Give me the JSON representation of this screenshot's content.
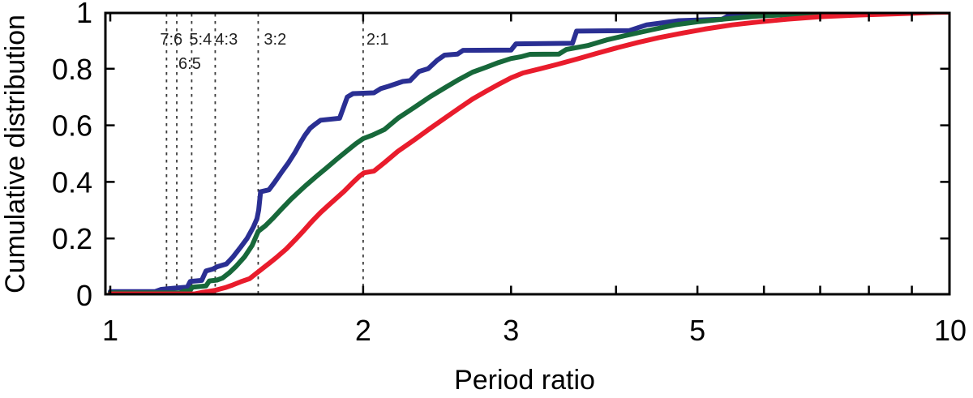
{
  "figure": {
    "background": "#ffffff",
    "frame_color": "#000000",
    "text_color": "#000000"
  },
  "chart_data": {
    "type": "line",
    "title": "",
    "xlabel": "Period ratio",
    "ylabel": "Cumulative distribution",
    "x_scale": "log",
    "xlim": [
      1,
      10
    ],
    "ylim": [
      0,
      1
    ],
    "grid": false,
    "legend": "none",
    "x_ticks": [
      {
        "v": 1,
        "label": "1"
      },
      {
        "v": 2,
        "label": "2"
      },
      {
        "v": 3,
        "label": "3"
      },
      {
        "v": 4,
        "label": ""
      },
      {
        "v": 5,
        "label": "5"
      },
      {
        "v": 6,
        "label": ""
      },
      {
        "v": 7,
        "label": ""
      },
      {
        "v": 8,
        "label": ""
      },
      {
        "v": 9,
        "label": ""
      },
      {
        "v": 10,
        "label": "10"
      }
    ],
    "y_ticks": [
      {
        "v": 0,
        "label": "0"
      },
      {
        "v": 0.2,
        "label": "0.2"
      },
      {
        "v": 0.4,
        "label": "0.4"
      },
      {
        "v": 0.6,
        "label": "0.6"
      },
      {
        "v": 0.8,
        "label": "0.8"
      },
      {
        "v": 1,
        "label": "1"
      }
    ],
    "resonances": [
      {
        "label": "7:6",
        "ratio": 1.1667,
        "row": 0,
        "dx": -8
      },
      {
        "label": "6:5",
        "ratio": 1.2,
        "row": 1,
        "dx": 2
      },
      {
        "label": "5:4",
        "ratio": 1.25,
        "row": 0,
        "dx": -3
      },
      {
        "label": "4:3",
        "ratio": 1.3333,
        "row": 0,
        "dx": 0
      },
      {
        "label": "3:2",
        "ratio": 1.5,
        "row": 0,
        "dx": 7
      },
      {
        "label": "2:1",
        "ratio": 2.0,
        "row": 0,
        "dx": 4
      }
    ],
    "resonance_line_color": "#3a3a3a",
    "series": [
      {
        "name": "blue",
        "color": "#2a2f93",
        "points": [
          [
            1.0,
            0.012
          ],
          [
            1.13,
            0.012
          ],
          [
            1.15,
            0.02
          ],
          [
            1.17,
            0.022
          ],
          [
            1.2,
            0.025
          ],
          [
            1.235,
            0.028
          ],
          [
            1.245,
            0.048
          ],
          [
            1.285,
            0.052
          ],
          [
            1.3,
            0.085
          ],
          [
            1.325,
            0.092
          ],
          [
            1.34,
            0.1
          ],
          [
            1.375,
            0.11
          ],
          [
            1.4,
            0.135
          ],
          [
            1.43,
            0.17
          ],
          [
            1.455,
            0.2
          ],
          [
            1.48,
            0.24
          ],
          [
            1.495,
            0.27
          ],
          [
            1.502,
            0.3
          ],
          [
            1.51,
            0.365
          ],
          [
            1.545,
            0.372
          ],
          [
            1.57,
            0.4
          ],
          [
            1.6,
            0.435
          ],
          [
            1.63,
            0.468
          ],
          [
            1.66,
            0.505
          ],
          [
            1.685,
            0.54
          ],
          [
            1.705,
            0.565
          ],
          [
            1.73,
            0.59
          ],
          [
            1.755,
            0.605
          ],
          [
            1.78,
            0.618
          ],
          [
            1.875,
            0.625
          ],
          [
            1.915,
            0.7
          ],
          [
            1.945,
            0.712
          ],
          [
            2.06,
            0.715
          ],
          [
            2.1,
            0.73
          ],
          [
            2.145,
            0.738
          ],
          [
            2.23,
            0.755
          ],
          [
            2.275,
            0.758
          ],
          [
            2.33,
            0.79
          ],
          [
            2.39,
            0.8
          ],
          [
            2.45,
            0.83
          ],
          [
            2.5,
            0.848
          ],
          [
            2.59,
            0.852
          ],
          [
            2.63,
            0.865
          ],
          [
            3.0,
            0.866
          ],
          [
            3.04,
            0.888
          ],
          [
            3.55,
            0.89
          ],
          [
            3.59,
            0.933
          ],
          [
            4.15,
            0.935
          ],
          [
            4.35,
            0.955
          ],
          [
            4.75,
            0.97
          ],
          [
            5.35,
            0.975
          ],
          [
            5.45,
            0.988
          ],
          [
            6.2,
            0.99
          ],
          [
            6.55,
            0.998
          ],
          [
            7.0,
            1.0
          ],
          [
            10,
            1.0
          ]
        ]
      },
      {
        "name": "green",
        "color": "#17683a",
        "points": [
          [
            1.0,
            0.008
          ],
          [
            1.21,
            0.008
          ],
          [
            1.225,
            0.014
          ],
          [
            1.243,
            0.015
          ],
          [
            1.253,
            0.028
          ],
          [
            1.3,
            0.032
          ],
          [
            1.312,
            0.05
          ],
          [
            1.34,
            0.053
          ],
          [
            1.36,
            0.06
          ],
          [
            1.385,
            0.078
          ],
          [
            1.41,
            0.1
          ],
          [
            1.445,
            0.135
          ],
          [
            1.475,
            0.175
          ],
          [
            1.5,
            0.225
          ],
          [
            1.53,
            0.245
          ],
          [
            1.56,
            0.27
          ],
          [
            1.6,
            0.305
          ],
          [
            1.64,
            0.338
          ],
          [
            1.67,
            0.36
          ],
          [
            1.71,
            0.388
          ],
          [
            1.76,
            0.42
          ],
          [
            1.81,
            0.45
          ],
          [
            1.86,
            0.48
          ],
          [
            1.91,
            0.508
          ],
          [
            1.96,
            0.535
          ],
          [
            2.0,
            0.553
          ],
          [
            2.05,
            0.565
          ],
          [
            2.12,
            0.585
          ],
          [
            2.2,
            0.625
          ],
          [
            2.3,
            0.663
          ],
          [
            2.4,
            0.7
          ],
          [
            2.5,
            0.732
          ],
          [
            2.6,
            0.762
          ],
          [
            2.7,
            0.788
          ],
          [
            2.8,
            0.805
          ],
          [
            2.9,
            0.822
          ],
          [
            3.0,
            0.836
          ],
          [
            3.08,
            0.842
          ],
          [
            3.16,
            0.851
          ],
          [
            3.42,
            0.852
          ],
          [
            3.49,
            0.868
          ],
          [
            3.7,
            0.882
          ],
          [
            3.9,
            0.902
          ],
          [
            4.1,
            0.917
          ],
          [
            4.4,
            0.937
          ],
          [
            4.7,
            0.955
          ],
          [
            5.0,
            0.966
          ],
          [
            5.4,
            0.976
          ],
          [
            5.9,
            0.986
          ],
          [
            6.4,
            0.991
          ],
          [
            7.0,
            0.996
          ],
          [
            7.6,
            1.0
          ],
          [
            10,
            1.0
          ]
        ]
      },
      {
        "name": "red",
        "color": "#e91c2c",
        "points": [
          [
            1.0,
            0.004
          ],
          [
            1.26,
            0.004
          ],
          [
            1.29,
            0.01
          ],
          [
            1.33,
            0.016
          ],
          [
            1.37,
            0.026
          ],
          [
            1.4,
            0.036
          ],
          [
            1.43,
            0.047
          ],
          [
            1.465,
            0.058
          ],
          [
            1.49,
            0.075
          ],
          [
            1.52,
            0.095
          ],
          [
            1.55,
            0.115
          ],
          [
            1.58,
            0.135
          ],
          [
            1.62,
            0.163
          ],
          [
            1.66,
            0.195
          ],
          [
            1.7,
            0.228
          ],
          [
            1.74,
            0.262
          ],
          [
            1.78,
            0.292
          ],
          [
            1.82,
            0.318
          ],
          [
            1.86,
            0.343
          ],
          [
            1.9,
            0.368
          ],
          [
            1.94,
            0.395
          ],
          [
            1.98,
            0.42
          ],
          [
            2.005,
            0.432
          ],
          [
            2.06,
            0.438
          ],
          [
            2.12,
            0.468
          ],
          [
            2.2,
            0.508
          ],
          [
            2.3,
            0.548
          ],
          [
            2.4,
            0.588
          ],
          [
            2.5,
            0.625
          ],
          [
            2.6,
            0.66
          ],
          [
            2.7,
            0.693
          ],
          [
            2.8,
            0.72
          ],
          [
            2.9,
            0.745
          ],
          [
            3.0,
            0.768
          ],
          [
            3.1,
            0.785
          ],
          [
            3.25,
            0.8
          ],
          [
            3.4,
            0.815
          ],
          [
            3.6,
            0.835
          ],
          [
            3.8,
            0.855
          ],
          [
            4.0,
            0.873
          ],
          [
            4.25,
            0.893
          ],
          [
            4.5,
            0.91
          ],
          [
            4.8,
            0.926
          ],
          [
            5.1,
            0.94
          ],
          [
            5.5,
            0.955
          ],
          [
            5.9,
            0.965
          ],
          [
            6.4,
            0.975
          ],
          [
            7.0,
            0.984
          ],
          [
            7.8,
            0.99
          ],
          [
            8.8,
            0.995
          ],
          [
            9.6,
            0.999
          ],
          [
            10,
            1.0
          ]
        ]
      }
    ]
  }
}
